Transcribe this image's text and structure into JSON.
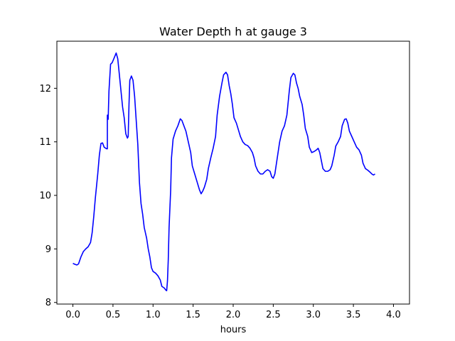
{
  "chart_data": {
    "type": "line",
    "title": "Water Depth h at gauge 3",
    "xlabel": "hours",
    "ylabel": "",
    "xlim": [
      -0.2,
      4.2
    ],
    "ylim": [
      7.97,
      12.88
    ],
    "xticks": [
      0.0,
      0.5,
      1.0,
      1.5,
      2.0,
      2.5,
      3.0,
      3.5,
      4.0
    ],
    "xtick_labels": [
      "0.0",
      "0.5",
      "1.0",
      "1.5",
      "2.0",
      "2.5",
      "3.0",
      "3.5",
      "4.0"
    ],
    "yticks": [
      8,
      9,
      10,
      11,
      12
    ],
    "ytick_labels": [
      "8",
      "9",
      "10",
      "11",
      "12"
    ],
    "grid": false,
    "legend": "none",
    "series": [
      {
        "name": "",
        "color": "#0000ff",
        "points": [
          [
            0.0,
            8.73
          ],
          [
            0.03,
            8.71
          ],
          [
            0.05,
            8.7
          ],
          [
            0.07,
            8.72
          ],
          [
            0.1,
            8.85
          ],
          [
            0.13,
            8.95
          ],
          [
            0.16,
            9.0
          ],
          [
            0.19,
            9.04
          ],
          [
            0.22,
            9.12
          ],
          [
            0.24,
            9.3
          ],
          [
            0.26,
            9.6
          ],
          [
            0.28,
            9.95
          ],
          [
            0.31,
            10.4
          ],
          [
            0.33,
            10.75
          ],
          [
            0.35,
            10.97
          ],
          [
            0.37,
            10.98
          ],
          [
            0.39,
            10.9
          ],
          [
            0.42,
            10.87
          ],
          [
            0.43,
            10.87
          ],
          [
            0.43,
            11.5
          ],
          [
            0.44,
            11.42
          ],
          [
            0.45,
            11.95
          ],
          [
            0.46,
            12.2
          ],
          [
            0.47,
            12.45
          ],
          [
            0.49,
            12.48
          ],
          [
            0.51,
            12.55
          ],
          [
            0.54,
            12.66
          ],
          [
            0.56,
            12.55
          ],
          [
            0.58,
            12.25
          ],
          [
            0.6,
            11.95
          ],
          [
            0.62,
            11.65
          ],
          [
            0.64,
            11.45
          ],
          [
            0.66,
            11.15
          ],
          [
            0.68,
            11.07
          ],
          [
            0.69,
            11.1
          ],
          [
            0.7,
            11.7
          ],
          [
            0.71,
            12.15
          ],
          [
            0.73,
            12.23
          ],
          [
            0.75,
            12.15
          ],
          [
            0.77,
            11.85
          ],
          [
            0.79,
            11.4
          ],
          [
            0.81,
            10.95
          ],
          [
            0.83,
            10.25
          ],
          [
            0.85,
            9.85
          ],
          [
            0.87,
            9.65
          ],
          [
            0.89,
            9.4
          ],
          [
            0.92,
            9.2
          ],
          [
            0.94,
            9.0
          ],
          [
            0.96,
            8.85
          ],
          [
            0.98,
            8.65
          ],
          [
            1.0,
            8.58
          ],
          [
            1.03,
            8.55
          ],
          [
            1.06,
            8.5
          ],
          [
            1.09,
            8.42
          ],
          [
            1.11,
            8.3
          ],
          [
            1.14,
            8.27
          ],
          [
            1.16,
            8.23
          ],
          [
            1.17,
            8.22
          ],
          [
            1.18,
            8.4
          ],
          [
            1.19,
            8.8
          ],
          [
            1.2,
            9.4
          ],
          [
            1.22,
            10.1
          ],
          [
            1.23,
            10.7
          ],
          [
            1.25,
            11.05
          ],
          [
            1.28,
            11.2
          ],
          [
            1.31,
            11.3
          ],
          [
            1.34,
            11.43
          ],
          [
            1.36,
            11.4
          ],
          [
            1.38,
            11.32
          ],
          [
            1.41,
            11.2
          ],
          [
            1.44,
            11.0
          ],
          [
            1.47,
            10.8
          ],
          [
            1.49,
            10.55
          ],
          [
            1.52,
            10.4
          ],
          [
            1.55,
            10.25
          ],
          [
            1.58,
            10.1
          ],
          [
            1.6,
            10.03
          ],
          [
            1.62,
            10.08
          ],
          [
            1.64,
            10.15
          ],
          [
            1.67,
            10.3
          ],
          [
            1.69,
            10.5
          ],
          [
            1.72,
            10.7
          ],
          [
            1.75,
            10.88
          ],
          [
            1.78,
            11.1
          ],
          [
            1.8,
            11.5
          ],
          [
            1.83,
            11.85
          ],
          [
            1.86,
            12.1
          ],
          [
            1.88,
            12.25
          ],
          [
            1.91,
            12.3
          ],
          [
            1.93,
            12.25
          ],
          [
            1.95,
            12.05
          ],
          [
            1.97,
            11.9
          ],
          [
            1.99,
            11.7
          ],
          [
            2.01,
            11.45
          ],
          [
            2.04,
            11.35
          ],
          [
            2.06,
            11.25
          ],
          [
            2.09,
            11.1
          ],
          [
            2.12,
            11.0
          ],
          [
            2.15,
            10.95
          ],
          [
            2.18,
            10.93
          ],
          [
            2.21,
            10.88
          ],
          [
            2.24,
            10.8
          ],
          [
            2.26,
            10.7
          ],
          [
            2.28,
            10.55
          ],
          [
            2.31,
            10.45
          ],
          [
            2.34,
            10.4
          ],
          [
            2.37,
            10.4
          ],
          [
            2.4,
            10.45
          ],
          [
            2.43,
            10.48
          ],
          [
            2.46,
            10.45
          ],
          [
            2.48,
            10.35
          ],
          [
            2.5,
            10.32
          ],
          [
            2.52,
            10.4
          ],
          [
            2.55,
            10.7
          ],
          [
            2.58,
            11.0
          ],
          [
            2.61,
            11.2
          ],
          [
            2.64,
            11.3
          ],
          [
            2.67,
            11.5
          ],
          [
            2.7,
            11.95
          ],
          [
            2.72,
            12.2
          ],
          [
            2.75,
            12.28
          ],
          [
            2.77,
            12.25
          ],
          [
            2.79,
            12.1
          ],
          [
            2.81,
            12.0
          ],
          [
            2.83,
            11.85
          ],
          [
            2.86,
            11.7
          ],
          [
            2.88,
            11.5
          ],
          [
            2.9,
            11.25
          ],
          [
            2.93,
            11.1
          ],
          [
            2.95,
            10.9
          ],
          [
            2.98,
            10.8
          ],
          [
            3.01,
            10.82
          ],
          [
            3.04,
            10.85
          ],
          [
            3.06,
            10.88
          ],
          [
            3.08,
            10.8
          ],
          [
            3.1,
            10.65
          ],
          [
            3.12,
            10.5
          ],
          [
            3.15,
            10.45
          ],
          [
            3.18,
            10.45
          ],
          [
            3.21,
            10.48
          ],
          [
            3.23,
            10.55
          ],
          [
            3.26,
            10.75
          ],
          [
            3.28,
            10.92
          ],
          [
            3.31,
            11.0
          ],
          [
            3.34,
            11.1
          ],
          [
            3.36,
            11.3
          ],
          [
            3.39,
            11.42
          ],
          [
            3.41,
            11.43
          ],
          [
            3.43,
            11.35
          ],
          [
            3.45,
            11.2
          ],
          [
            3.48,
            11.1
          ],
          [
            3.51,
            11.0
          ],
          [
            3.54,
            10.9
          ],
          [
            3.57,
            10.85
          ],
          [
            3.6,
            10.75
          ],
          [
            3.62,
            10.6
          ],
          [
            3.65,
            10.5
          ],
          [
            3.68,
            10.47
          ],
          [
            3.71,
            10.43
          ],
          [
            3.73,
            10.4
          ],
          [
            3.75,
            10.38
          ],
          [
            3.77,
            10.4
          ]
        ]
      }
    ]
  }
}
